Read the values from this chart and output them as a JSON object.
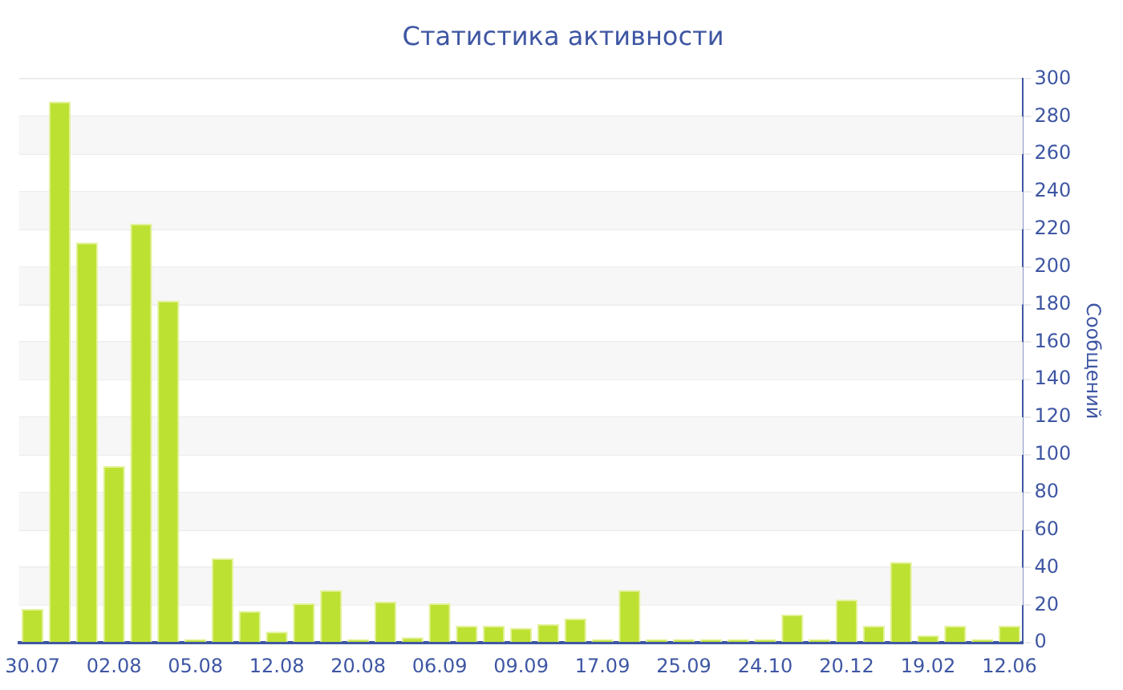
{
  "chart_data": {
    "type": "bar",
    "title": "Статистика активности",
    "ylabel": "Сообщений",
    "categories": [
      "30.07",
      null,
      null,
      "02.08",
      null,
      null,
      "05.08",
      null,
      null,
      "12.08",
      null,
      null,
      "20.08",
      null,
      null,
      "06.09",
      null,
      null,
      "09.09",
      null,
      null,
      "17.09",
      null,
      null,
      "25.09",
      null,
      null,
      "24.10",
      null,
      null,
      "20.12",
      null,
      null,
      "19.02",
      null,
      null,
      "12.06"
    ],
    "values": [
      18,
      288,
      213,
      94,
      223,
      182,
      2,
      45,
      17,
      6,
      21,
      28,
      2,
      22,
      3,
      21,
      9,
      9,
      8,
      10,
      13,
      2,
      28,
      2,
      2,
      2,
      2,
      2,
      15,
      2,
      23,
      9,
      43,
      4,
      9,
      2,
      9
    ],
    "color": "#bde132",
    "ylim": [
      0,
      300
    ],
    "yticks": [
      0,
      20,
      40,
      60,
      80,
      100,
      120,
      140,
      160,
      180,
      200,
      220,
      240,
      260,
      280,
      300
    ],
    "grid": "y",
    "legend": false
  }
}
